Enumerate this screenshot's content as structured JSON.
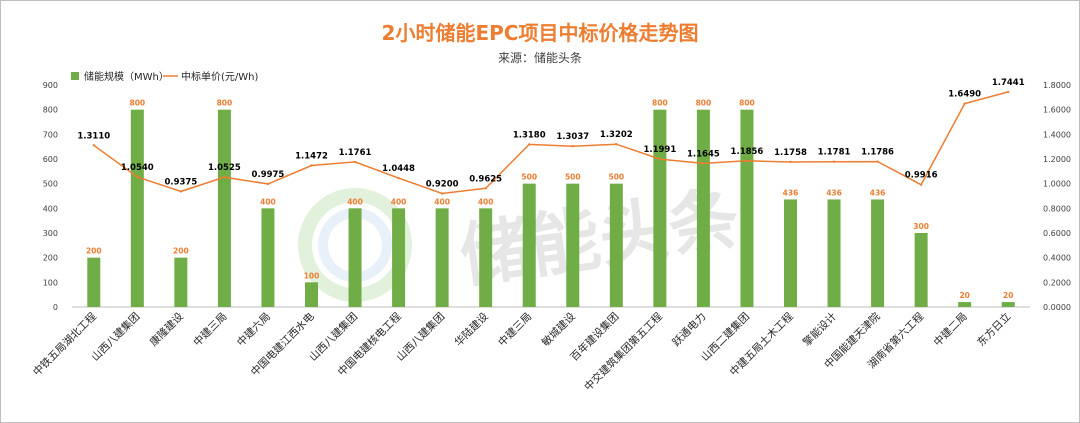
{
  "chart_data": {
    "type": "bar",
    "title": "2小时储能EPC项目中标价格走势图",
    "subtitle": "来源：储能头条",
    "watermark": "储能头条",
    "categories": [
      "中铁五局湖北工程",
      "山西八建集团",
      "康隆建设",
      "中建三局",
      "中建六局",
      "中国电建江西水电",
      "山西八建集团",
      "中国电建核电工程",
      "山西八建集团",
      "华陆建设",
      "中建三局",
      "敏城建设",
      "百年建设集团",
      "中交建筑集团第五工程",
      "跃通电力",
      "山西二建集团",
      "中建五局土木工程",
      "擎能设计",
      "中国能建天津院",
      "湖南省第六工程",
      "中建二局",
      "东方日立"
    ],
    "series": [
      {
        "name": "储能规模（MWh）",
        "type": "bar",
        "axis": "left",
        "color": "#70AD47",
        "values": [
          200,
          800,
          200,
          800,
          400,
          100,
          400,
          400,
          400,
          400,
          500,
          500,
          500,
          800,
          800,
          800,
          436,
          436,
          436,
          300,
          20,
          20
        ]
      },
      {
        "name": "中标单价(元/Wh)",
        "type": "line",
        "axis": "right",
        "color": "#ED7D31",
        "values": [
          1.311,
          1.054,
          0.9375,
          1.0525,
          0.9975,
          1.1472,
          1.1761,
          1.0448,
          0.92,
          0.9625,
          1.318,
          1.3037,
          1.3202,
          1.1991,
          1.1645,
          1.1856,
          1.1758,
          1.1781,
          1.1786,
          0.9916,
          1.649,
          1.7441
        ]
      }
    ],
    "y_left": {
      "min": 0,
      "max": 900,
      "step": 100,
      "ticks": [
        "0",
        "100",
        "200",
        "300",
        "400",
        "500",
        "600",
        "700",
        "800",
        "900"
      ]
    },
    "y_right": {
      "min": 0,
      "max": 1.8,
      "step": 0.2,
      "ticks": [
        "0.0000",
        "0.2000",
        "0.4000",
        "0.6000",
        "0.8000",
        "1.0000",
        "1.2000",
        "1.4000",
        "1.6000",
        "1.8000"
      ]
    },
    "line_labels": [
      "1.3110",
      "1.0540",
      "0.9375",
      "1.0525",
      "0.9975",
      "1.1472",
      "1.1761",
      "1.0448",
      "0.9200",
      "0.9625",
      "1.3180",
      "1.3037",
      "1.3202",
      "1.1991",
      "1.1645",
      "1.1856",
      "1.1758",
      "1.1781",
      "1.1786",
      "0.9916",
      "1.6490",
      "1.7441"
    ],
    "legend_position": "top-left",
    "grid": false
  }
}
